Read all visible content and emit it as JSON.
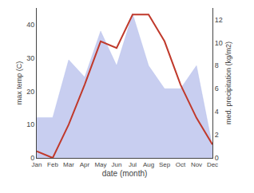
{
  "chart_data": {
    "type": "line",
    "xlabel": "date (month)",
    "ylabel": "max temp (C)",
    "y2label": "med. precipitation (kg/m2)",
    "categories": [
      "Jan",
      "Feb",
      "Mar",
      "Apr",
      "May",
      "Jun",
      "Jul",
      "Aug",
      "Sep",
      "Oct",
      "Nov",
      "Dec"
    ],
    "series": [
      {
        "type": "area",
        "axis": "y2",
        "color": "#aab4e8",
        "values": [
          3.5,
          3.5,
          8.5,
          7.0,
          11.0,
          8.0,
          12.5,
          8.0,
          6.0,
          6.0,
          8.0,
          1.0
        ]
      },
      {
        "type": "line",
        "color": "#c0392b",
        "values": [
          2,
          0,
          10,
          22,
          35,
          33,
          43,
          43,
          35,
          22,
          12,
          4
        ]
      }
    ],
    "ylim": [
      0,
      45
    ],
    "yticks": [
      0,
      10,
      20,
      30,
      40
    ],
    "y2lim": [
      0,
      13
    ],
    "y2ticks": [
      0,
      2,
      4,
      6,
      8,
      10,
      12
    ],
    "grid": false
  }
}
